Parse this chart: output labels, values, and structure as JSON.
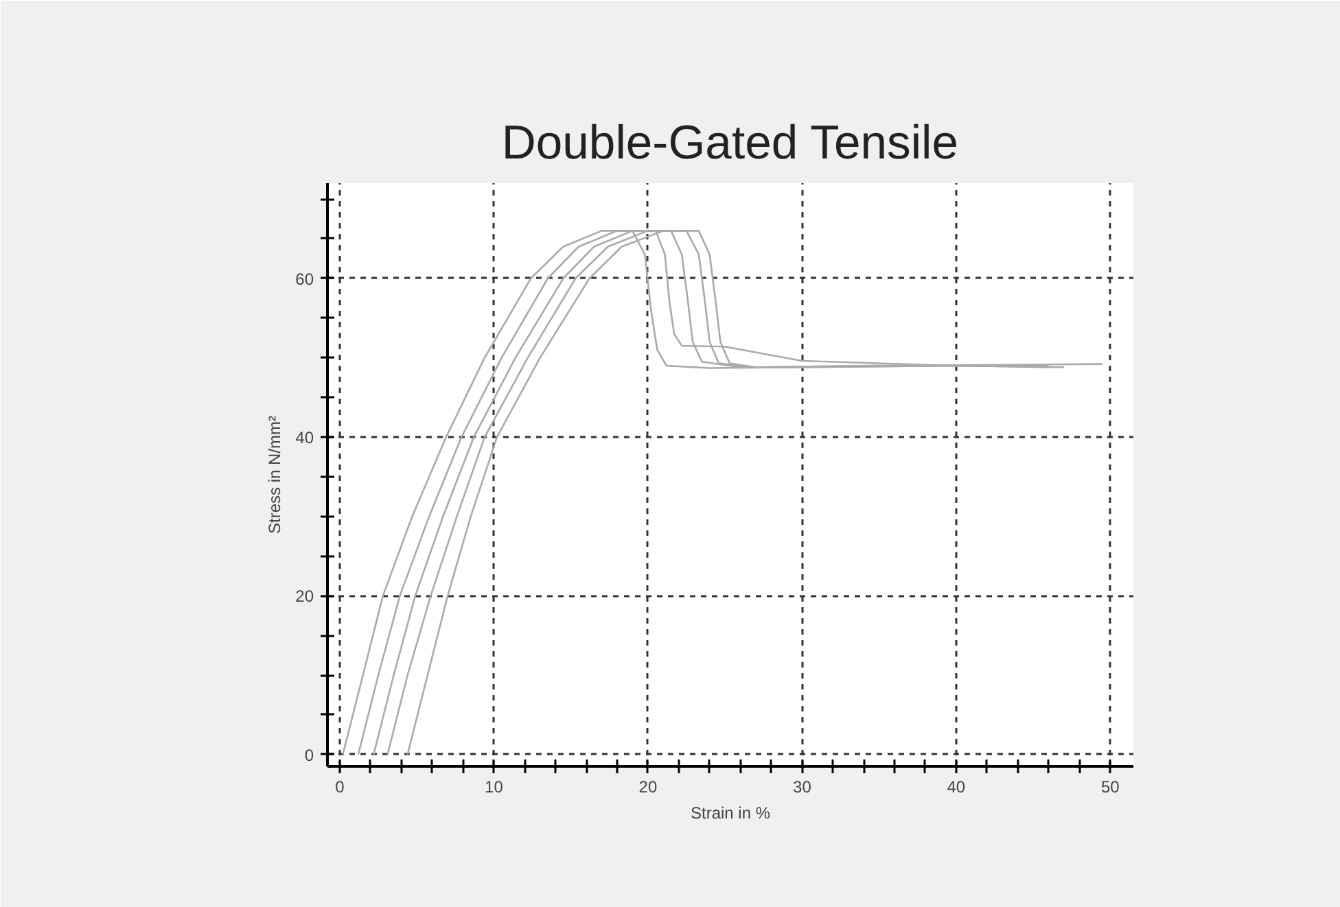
{
  "chart_data": {
    "type": "line",
    "title": "Double-Gated Tensile",
    "xlabel": "Strain in %",
    "ylabel": "Stress in N/mm²",
    "xlim": [
      -0.8,
      51.5
    ],
    "ylim": [
      -1.5,
      72
    ],
    "xticks": [
      0,
      {
        "value": 2,
        "label": null
      },
      {
        "value": 4,
        "label": null
      },
      {
        "value": 6,
        "label": null
      },
      {
        "value": 8,
        "label": null
      },
      10,
      {
        "value": 12,
        "label": null
      },
      {
        "value": 14,
        "label": null
      },
      {
        "value": 16,
        "label": null
      },
      {
        "value": 18,
        "label": null
      },
      20,
      {
        "value": 22,
        "label": null
      },
      {
        "value": 24,
        "label": null
      },
      {
        "value": 26,
        "label": null
      },
      {
        "value": 28,
        "label": null
      },
      30,
      {
        "value": 32,
        "label": null
      },
      {
        "value": 34,
        "label": null
      },
      {
        "value": 36,
        "label": null
      },
      {
        "value": 38,
        "label": null
      },
      40,
      {
        "value": 42,
        "label": null
      },
      {
        "value": 44,
        "label": null
      },
      {
        "value": 46,
        "label": null
      },
      {
        "value": 48,
        "label": null
      },
      50
    ],
    "yticks": [
      0,
      {
        "value": 5,
        "label": null
      },
      {
        "value": 10,
        "label": null
      },
      {
        "value": 15,
        "label": null
      },
      20,
      {
        "value": 25,
        "label": null
      },
      {
        "value": 30,
        "label": null
      },
      {
        "value": 35,
        "label": null
      },
      40,
      {
        "value": 45,
        "label": null
      },
      {
        "value": 50,
        "label": null
      },
      {
        "value": 55,
        "label": null
      },
      60,
      {
        "value": 65,
        "label": null
      },
      {
        "value": 70,
        "label": null
      }
    ],
    "grid": true,
    "line_style": "solid",
    "marker": "none",
    "series": [
      {
        "color": "#aaaaaa",
        "x": [
          0.2,
          1.5,
          2.8,
          4.7,
          6.9,
          9.4,
          12.4,
          14.5,
          17,
          19,
          19.8,
          20.2,
          20.6,
          21.2,
          24,
          30,
          40,
          46
        ],
        "values": [
          0,
          10,
          20,
          30,
          40,
          50,
          60,
          64,
          66,
          66,
          63,
          56,
          51,
          49,
          48.7,
          48.8,
          49,
          48.8
        ]
      },
      {
        "color": "#aaaaaa",
        "x": [
          1.2,
          2.5,
          3.9,
          5.8,
          7.9,
          10.5,
          13.5,
          15.5,
          18,
          20.5,
          21.1,
          21.4,
          21.7,
          22.2,
          25,
          30,
          40,
          47
        ],
        "values": [
          0,
          10,
          20,
          30,
          40,
          50,
          60,
          64,
          66,
          66,
          63,
          57,
          53,
          51.5,
          51.4,
          49.6,
          49,
          48.8
        ]
      },
      {
        "color": "#aaaaaa",
        "x": [
          2.2,
          3.5,
          4.9,
          6.7,
          8.7,
          11.4,
          14.5,
          16.5,
          19,
          21.5,
          22.2,
          22.6,
          22.9,
          23.5,
          26,
          30,
          40,
          46
        ],
        "values": [
          0,
          10,
          20,
          30,
          40,
          50,
          60,
          64,
          66,
          66,
          63,
          57,
          52,
          49.5,
          48.8,
          48.8,
          49,
          49
        ]
      },
      {
        "color": "#aaaaaa",
        "x": [
          3.1,
          4.4,
          5.9,
          7.6,
          9.4,
          12.2,
          15.3,
          17.4,
          20,
          22.5,
          23.3,
          23.7,
          24,
          24.6,
          27,
          35,
          45
        ],
        "values": [
          0,
          10,
          20,
          30,
          40,
          50,
          60,
          64,
          66,
          66,
          63,
          57,
          52,
          49.3,
          48.8,
          49,
          49
        ]
      },
      {
        "color": "#aaaaaa",
        "x": [
          4.4,
          5.7,
          7,
          8.5,
          10.2,
          13,
          16.2,
          18.3,
          21,
          23.3,
          24,
          24.4,
          24.7,
          25.3,
          27,
          35,
          49.5
        ],
        "values": [
          0,
          10,
          20,
          30,
          40,
          50,
          60,
          64,
          66,
          66,
          63,
          57,
          52,
          49.3,
          48.8,
          49,
          49.2
        ]
      }
    ]
  }
}
